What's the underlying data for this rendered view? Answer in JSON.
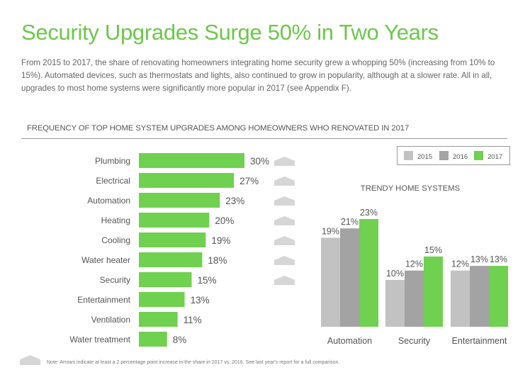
{
  "page": {
    "title": "Security Upgrades Surge 50% in Two Years",
    "intro": "From 2015 to 2017, the share of renovating homeowners integrating home security grew a whopping 50% (increasing from 10% to 15%). Automated devices, such as thermostats and lights, also continued to grow in popularity, although at a slower rate. All in all, upgrades to most home systems were significantly more popular in 2017 (see Appendix F).",
    "section_heading": "FREQUENCY OF TOP HOME SYSTEM UPGRADES AMONG HOMEOWNERS WHO RENOVATED IN 2017",
    "note": "Note: Arrows indicate at least a 2 percentage point increase in the share in 2017 vs. 2016. See last year's report for a full comparison."
  },
  "colors": {
    "green": "#6fd14f",
    "gray_2015": "#c2c2c2",
    "gray_2016": "#a3a3a3",
    "arrow": "#d6d6d6",
    "title_green": "#6cc84a"
  },
  "chart_data": [
    {
      "type": "bar",
      "orientation": "horizontal",
      "title": "FREQUENCY OF TOP HOME SYSTEM UPGRADES AMONG HOMEOWNERS WHO RENOVATED IN 2017",
      "categories": [
        "Plumbing",
        "Electrical",
        "Automation",
        "Heating",
        "Cooling",
        "Water heater",
        "Security",
        "Entertainment",
        "Ventilation",
        "Water treatment"
      ],
      "values": [
        30,
        27,
        23,
        20,
        19,
        18,
        15,
        13,
        11,
        8
      ],
      "labels": [
        "30%",
        "27%",
        "23%",
        "20%",
        "19%",
        "18%",
        "15%",
        "13%",
        "11%",
        "8%"
      ],
      "increase_arrow": [
        true,
        true,
        true,
        true,
        true,
        true,
        true,
        false,
        false,
        false
      ],
      "xlim": [
        0,
        30
      ],
      "unit": "%"
    },
    {
      "type": "bar",
      "orientation": "vertical",
      "title": "TRENDY HOME SYSTEMS",
      "categories": [
        "Automation",
        "Security",
        "Entertainment"
      ],
      "series": [
        {
          "name": "2015",
          "values": [
            19,
            10,
            12
          ],
          "labels": [
            "19%",
            "10%",
            "12%"
          ]
        },
        {
          "name": "2016",
          "values": [
            21,
            12,
            13
          ],
          "labels": [
            "21%",
            "12%",
            "13%"
          ]
        },
        {
          "name": "2017",
          "values": [
            23,
            15,
            13
          ],
          "labels": [
            "23%",
            "15%",
            "13%"
          ]
        }
      ],
      "ylim": [
        0,
        23
      ],
      "legend": "top-right",
      "unit": "%"
    }
  ]
}
